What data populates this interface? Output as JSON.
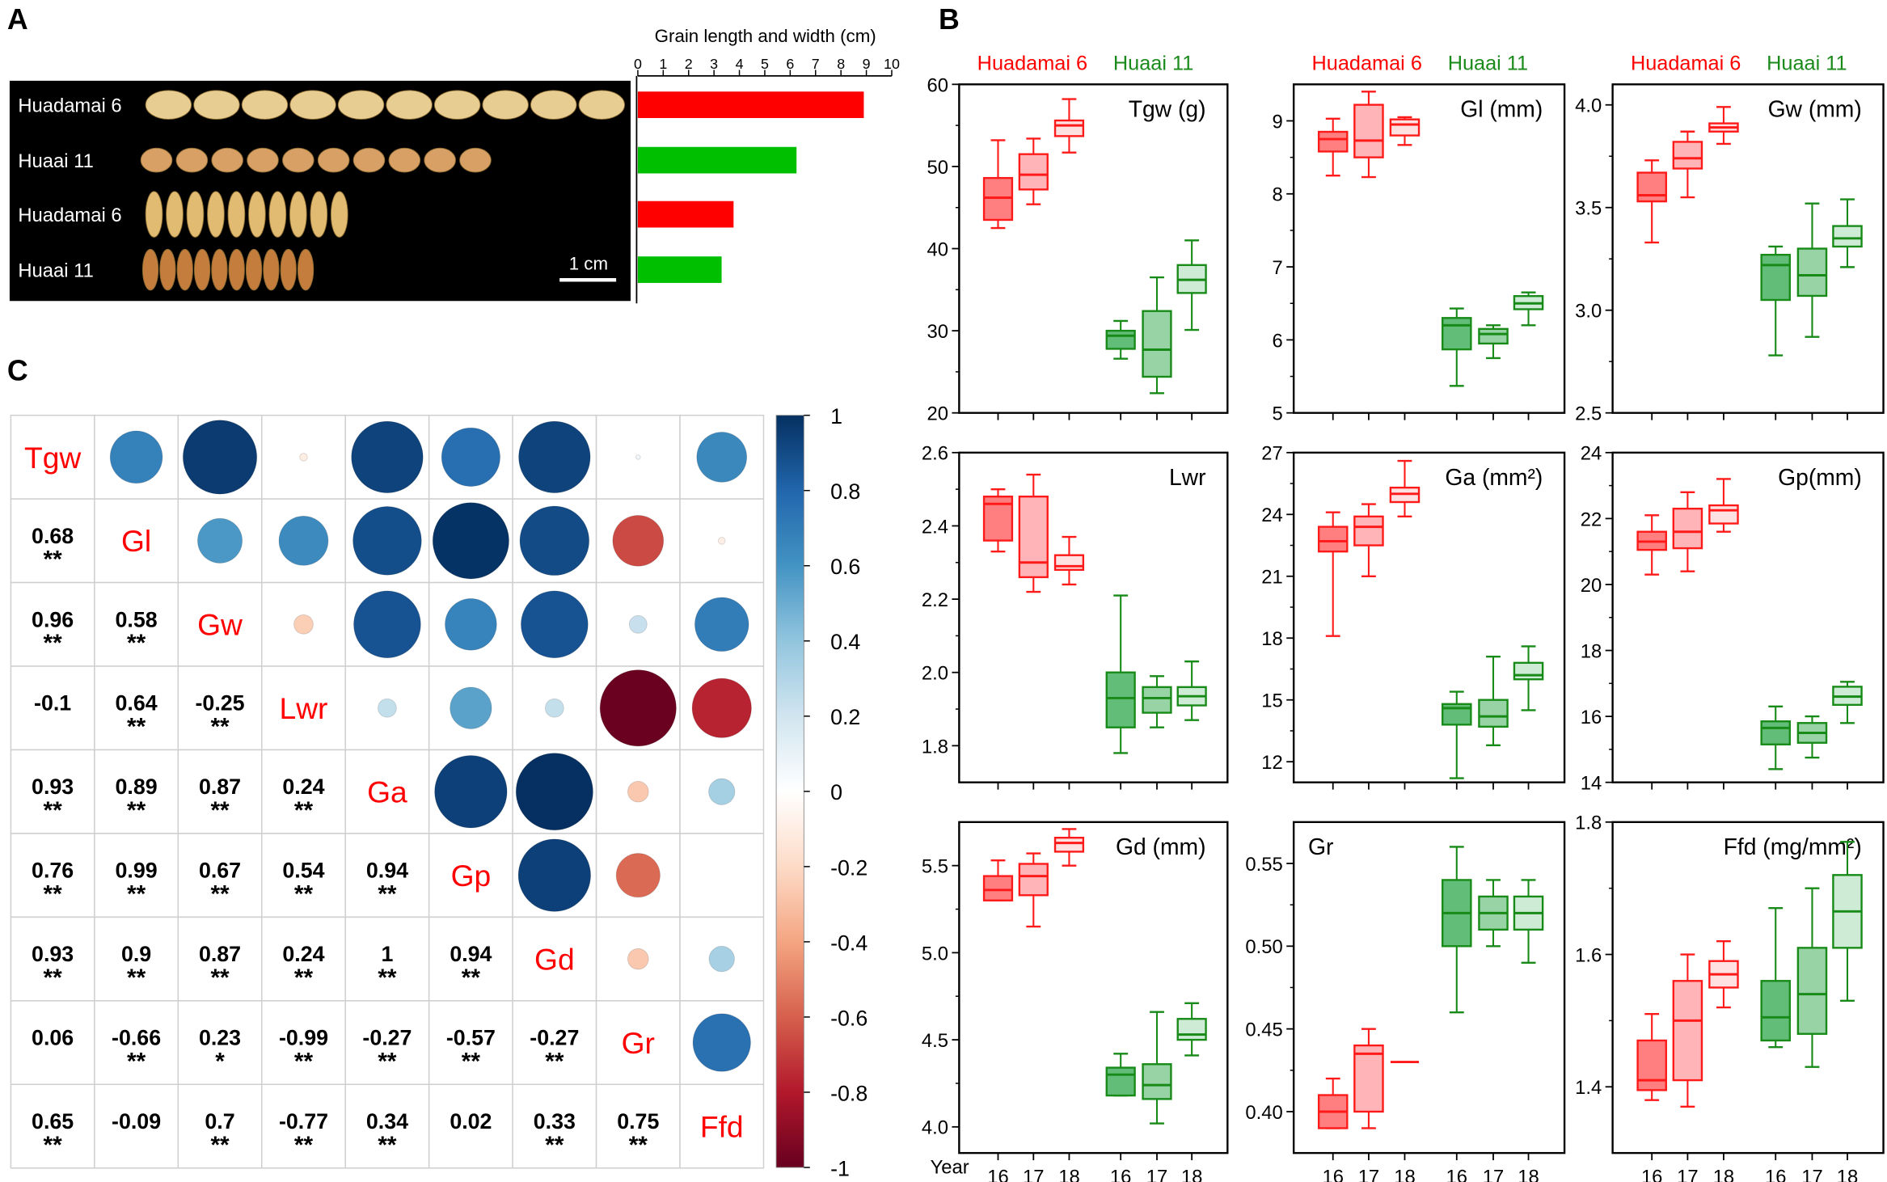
{
  "panel_labels": {
    "a": "A",
    "b": "B",
    "c": "C"
  },
  "legend": {
    "variety1": "Huadamai 6",
    "variety2": "Huaai 11"
  },
  "colors": {
    "variety1": "#ff0000",
    "variety2": "#00bf00",
    "variety2_dark": "#1a8a1a"
  },
  "photo": {
    "rows": [
      "Huadamai 6",
      "Huaai 11",
      "Huadamai 6",
      "Huaai 11"
    ],
    "scale_bar": "1 cm"
  },
  "chart_data": [
    {
      "type": "bar",
      "orientation": "horizontal",
      "title": "Grain length and width (cm)",
      "categories": [
        "Huadamai 6 length",
        "Huaai 11 length",
        "Huadamai 6 width",
        "Huaai 11 width"
      ],
      "values": [
        8.9,
        6.25,
        3.77,
        3.3
      ],
      "bar_colors": [
        "#ff0000",
        "#00bf00",
        "#ff0000",
        "#00bf00"
      ],
      "xlim": [
        0,
        10
      ],
      "ticks": [
        "0",
        "1",
        "2",
        "3",
        "4",
        "5",
        "6",
        "7",
        "8",
        "9",
        "10"
      ]
    },
    {
      "type": "boxplot",
      "x_label": "Year",
      "years": [
        "16",
        "17",
        "18",
        "16",
        "17",
        "18"
      ],
      "groups": [
        "Huadamai 6",
        "Huadamai 6",
        "Huadamai 6",
        "Huaai 11",
        "Huaai 11",
        "Huaai 11"
      ],
      "stat_order": [
        "min",
        "q1",
        "median",
        "q3",
        "max"
      ],
      "panels": [
        {
          "title": "Tgw (g)",
          "title_anchor": "right",
          "ylim": [
            20,
            60
          ],
          "ticks": [
            20,
            30,
            40,
            50,
            60
          ],
          "tick_labels": [
            "20",
            "30",
            "40",
            "50",
            "60"
          ],
          "boxes": [
            [
              42.5,
              43.5,
              46.2,
              48.6,
              53.2
            ],
            [
              45.4,
              47.2,
              49,
              51.5,
              53.4
            ],
            [
              51.7,
              53.7,
              55,
              55.6,
              58.2
            ],
            [
              26.6,
              27.8,
              29.4,
              30,
              31.2
            ],
            [
              22.4,
              24.4,
              27.7,
              32.4,
              36.5
            ],
            [
              30.1,
              34.6,
              36.2,
              38,
              41
            ]
          ]
        },
        {
          "title": "Gl (mm)",
          "title_anchor": "right",
          "ylim": [
            5,
            9.5
          ],
          "ticks": [
            5,
            6,
            7,
            8,
            9
          ],
          "tick_labels": [
            "5",
            "6",
            "7",
            "8",
            "9"
          ],
          "boxes": [
            [
              8.25,
              8.58,
              8.75,
              8.85,
              9.03
            ],
            [
              8.23,
              8.5,
              8.73,
              9.22,
              9.4
            ],
            [
              8.67,
              8.8,
              8.95,
              9.02,
              9.05
            ],
            [
              5.37,
              5.87,
              6.2,
              6.3,
              6.43
            ],
            [
              5.75,
              5.95,
              6.08,
              6.15,
              6.2
            ],
            [
              6.2,
              6.42,
              6.5,
              6.6,
              6.65
            ]
          ]
        },
        {
          "title": "Gw (mm)",
          "title_anchor": "right",
          "ylim": [
            2.5,
            4.1
          ],
          "ticks": [
            2.5,
            3.0,
            3.5,
            4.0
          ],
          "tick_labels": [
            "2.5",
            "3.0",
            "3.5",
            "4.0"
          ],
          "boxes": [
            [
              3.33,
              3.53,
              3.56,
              3.67,
              3.73
            ],
            [
              3.55,
              3.69,
              3.74,
              3.82,
              3.87
            ],
            [
              3.81,
              3.87,
              3.89,
              3.91,
              3.99
            ],
            [
              2.78,
              3.05,
              3.22,
              3.27,
              3.31
            ],
            [
              2.87,
              3.07,
              3.17,
              3.3,
              3.52
            ],
            [
              3.21,
              3.31,
              3.35,
              3.41,
              3.54
            ]
          ]
        },
        {
          "title": "Lwr",
          "title_anchor": "right",
          "ylim": [
            1.7,
            2.6
          ],
          "ticks": [
            1.8,
            2.0,
            2.2,
            2.4,
            2.6
          ],
          "tick_labels": [
            "1.8",
            "2.0",
            "2.2",
            "2.4",
            "2.6"
          ],
          "boxes": [
            [
              2.33,
              2.36,
              2.46,
              2.48,
              2.5
            ],
            [
              2.22,
              2.26,
              2.3,
              2.48,
              2.54
            ],
            [
              2.24,
              2.28,
              2.29,
              2.32,
              2.37
            ],
            [
              1.78,
              1.85,
              1.93,
              2.0,
              2.21
            ],
            [
              1.85,
              1.89,
              1.93,
              1.96,
              1.99
            ],
            [
              1.87,
              1.91,
              1.935,
              1.96,
              2.03
            ]
          ]
        },
        {
          "title": "Ga (mm²)",
          "title_anchor": "right",
          "ylim": [
            11,
            27
          ],
          "ticks": [
            12,
            15,
            18,
            21,
            24,
            27
          ],
          "tick_labels": [
            "12",
            "15",
            "18",
            "21",
            "24",
            "27"
          ],
          "boxes": [
            [
              18.1,
              22.2,
              22.7,
              23.4,
              24.1
            ],
            [
              21,
              22.5,
              23.4,
              23.9,
              24.5
            ],
            [
              23.9,
              24.6,
              25,
              25.3,
              26.6
            ],
            [
              11.2,
              13.8,
              14.6,
              14.8,
              15.4
            ],
            [
              12.8,
              13.7,
              14.2,
              15,
              17.1
            ],
            [
              14.5,
              16,
              16.2,
              16.8,
              17.6
            ]
          ]
        },
        {
          "title": "Gp(mm)",
          "title_anchor": "right",
          "ylim": [
            14,
            24
          ],
          "ticks": [
            14,
            16,
            18,
            20,
            22,
            24
          ],
          "tick_labels": [
            "14",
            "16",
            "18",
            "20",
            "22",
            "24"
          ],
          "boxes": [
            [
              20.3,
              21.05,
              21.3,
              21.6,
              22.1
            ],
            [
              20.4,
              21.1,
              21.6,
              22.3,
              22.8
            ],
            [
              21.6,
              21.85,
              22.25,
              22.4,
              23.2
            ],
            [
              14.4,
              15.15,
              15.65,
              15.85,
              16.3
            ],
            [
              14.75,
              15.2,
              15.5,
              15.8,
              16.0
            ],
            [
              15.8,
              16.35,
              16.6,
              16.9,
              17.05
            ]
          ]
        },
        {
          "title": "Gd (mm)",
          "title_anchor": "right",
          "ylim": [
            3.85,
            5.75
          ],
          "ticks": [
            4.0,
            4.5,
            5.0,
            5.5
          ],
          "tick_labels": [
            "4.0",
            "4.5",
            "5.0",
            "5.5"
          ],
          "boxes": [
            [
              5.3,
              5.3,
              5.36,
              5.44,
              5.53
            ],
            [
              5.15,
              5.33,
              5.44,
              5.51,
              5.57
            ],
            [
              5.5,
              5.58,
              5.63,
              5.66,
              5.71
            ],
            [
              4.18,
              4.18,
              4.3,
              4.34,
              4.42
            ],
            [
              4.02,
              4.16,
              4.24,
              4.36,
              4.66
            ],
            [
              4.41,
              4.5,
              4.53,
              4.62,
              4.71
            ]
          ]
        },
        {
          "title": "Gr",
          "title_anchor": "left",
          "ylim": [
            0.375,
            0.575
          ],
          "ticks": [
            0.4,
            0.45,
            0.5,
            0.55
          ],
          "tick_labels": [
            "0.40",
            "0.45",
            "0.50",
            "0.55"
          ],
          "boxes": [
            [
              0.39,
              0.39,
              0.4,
              0.41,
              0.42
            ],
            [
              0.39,
              0.4,
              0.435,
              0.44,
              0.45
            ],
            [
              0.43,
              0.43,
              0.43,
              0.43,
              0.43
            ],
            [
              0.46,
              0.5,
              0.52,
              0.54,
              0.56
            ],
            [
              0.5,
              0.51,
              0.52,
              0.53,
              0.54
            ],
            [
              0.49,
              0.51,
              0.52,
              0.53,
              0.54
            ]
          ]
        },
        {
          "title": "Ffd (mg/mm²)",
          "title_anchor": "right",
          "ylim": [
            1.3,
            1.8
          ],
          "ticks": [
            1.4,
            1.6,
            1.8
          ],
          "tick_labels": [
            "1.4",
            "1.6",
            "1.8"
          ],
          "boxes": [
            [
              1.38,
              1.395,
              1.41,
              1.47,
              1.51
            ],
            [
              1.37,
              1.41,
              1.5,
              1.56,
              1.6
            ],
            [
              1.52,
              1.55,
              1.57,
              1.59,
              1.62
            ],
            [
              1.46,
              1.47,
              1.505,
              1.56,
              1.67
            ],
            [
              1.43,
              1.48,
              1.54,
              1.61,
              1.7
            ],
            [
              1.53,
              1.61,
              1.665,
              1.72,
              1.77
            ]
          ]
        }
      ]
    },
    {
      "type": "heatmap",
      "subtype": "correlation",
      "variables": [
        "Tgw",
        "Gl",
        "Gw",
        "Lwr",
        "Ga",
        "Gp",
        "Gd",
        "Gr",
        "Ffd"
      ],
      "lower": [
        [],
        [
          {
            "r": 0.68,
            "sig": "**"
          }
        ],
        [
          {
            "r": 0.96,
            "sig": "**"
          },
          {
            "r": 0.58,
            "sig": "**"
          }
        ],
        [
          {
            "r": -0.1,
            "sig": ""
          },
          {
            "r": 0.64,
            "sig": "**"
          },
          {
            "r": -0.25,
            "sig": "**"
          }
        ],
        [
          {
            "r": 0.93,
            "sig": "**"
          },
          {
            "r": 0.89,
            "sig": "**"
          },
          {
            "r": 0.87,
            "sig": "**"
          },
          {
            "r": 0.24,
            "sig": "**"
          }
        ],
        [
          {
            "r": 0.76,
            "sig": "**"
          },
          {
            "r": 0.99,
            "sig": "**"
          },
          {
            "r": 0.67,
            "sig": "**"
          },
          {
            "r": 0.54,
            "sig": "**"
          },
          {
            "r": 0.94,
            "sig": "**"
          }
        ],
        [
          {
            "r": 0.93,
            "sig": "**"
          },
          {
            "r": 0.9,
            "sig": "**"
          },
          {
            "r": 0.87,
            "sig": "**"
          },
          {
            "r": 0.24,
            "sig": "**"
          },
          {
            "r": 1,
            "sig": "**"
          },
          {
            "r": 0.94,
            "sig": "**"
          }
        ],
        [
          {
            "r": 0.06,
            "sig": ""
          },
          {
            "r": -0.66,
            "sig": "**"
          },
          {
            "r": 0.23,
            "sig": "*"
          },
          {
            "r": -0.99,
            "sig": "**"
          },
          {
            "r": -0.27,
            "sig": "**"
          },
          {
            "r": -0.57,
            "sig": "**"
          },
          {
            "r": -0.27,
            "sig": "**"
          }
        ],
        [
          {
            "r": 0.65,
            "sig": "**"
          },
          {
            "r": -0.09,
            "sig": ""
          },
          {
            "r": 0.7,
            "sig": "**"
          },
          {
            "r": -0.77,
            "sig": "**"
          },
          {
            "r": 0.34,
            "sig": "**"
          },
          {
            "r": 0.02,
            "sig": ""
          },
          {
            "r": 0.33,
            "sig": "**"
          },
          {
            "r": 0.75,
            "sig": "**"
          }
        ]
      ],
      "colorbar": {
        "range": [
          -1,
          1
        ],
        "ticks": [
          "1",
          "0.8",
          "0.6",
          "0.4",
          "0.2",
          "0",
          "-0.2",
          "-0.4",
          "-0.6",
          "-0.8",
          "-1"
        ],
        "stops": [
          "#67001f",
          "#b2182b",
          "#d6604d",
          "#f4a582",
          "#fddbc7",
          "#ffffff",
          "#d1e5f0",
          "#92c5de",
          "#4393c3",
          "#2166ac",
          "#053061"
        ]
      }
    }
  ]
}
